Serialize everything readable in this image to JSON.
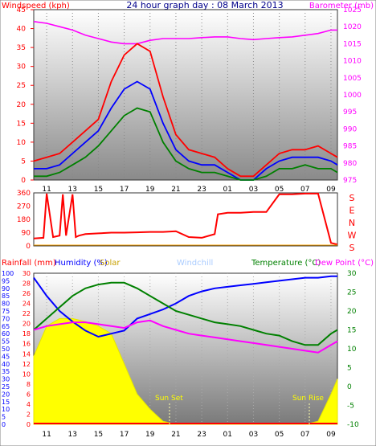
{
  "title": "24 hour graph day : 08 March 2013",
  "x_tick_labels": [
    "11",
    "13",
    "15",
    "17",
    "19",
    "21",
    "23",
    "01",
    "03",
    "05",
    "07",
    "09"
  ],
  "top": {
    "left_label": "Windspeed (kph)",
    "right_label": "Barometer (mb)",
    "left_ticks": [
      0,
      5,
      10,
      15,
      20,
      25,
      30,
      35,
      40,
      45
    ],
    "right_ticks": [
      975,
      980,
      985,
      990,
      995,
      1000,
      1005,
      1010,
      1015,
      1020,
      1025
    ],
    "colors": {
      "gust": "#ff0000",
      "avg": "#0000ff",
      "lull": "#008000",
      "baro": "#ff00ff",
      "left_axis": "#ff0000",
      "right_axis": "#ff00ff"
    }
  },
  "mid": {
    "left_ticks": [
      0,
      90,
      180,
      270,
      360
    ],
    "right_letters": [
      "S",
      "E",
      "N",
      "W",
      "S"
    ],
    "colors": {
      "dir": "#ff0000"
    }
  },
  "bottom": {
    "labels": {
      "rain": "Rainfall (mm)",
      "humidity": "Humidity (%)",
      "solar": "Solar",
      "windchill": "Windchill",
      "temp": "Temperature (°C)",
      "dew": "Dew Point (°C)"
    },
    "rain_ticks": [
      0,
      5,
      10,
      15,
      20,
      25,
      30,
      35,
      40,
      45,
      50,
      55,
      60,
      65,
      70,
      75,
      80,
      85,
      90,
      95,
      100
    ],
    "humidity_ticks": [
      0,
      2,
      4,
      6,
      8,
      10,
      12,
      14,
      16,
      18,
      20,
      22,
      24,
      26,
      28,
      30
    ],
    "temp_ticks": [
      -10,
      -5,
      0,
      5,
      10,
      15,
      20,
      25,
      30
    ],
    "sun_set": "Sun Set",
    "sun_rise": "Sun Rise",
    "colors": {
      "humidity": "#0000ff",
      "temp": "#008000",
      "dew": "#ff00ff",
      "solar": "#ffff00",
      "rain_axis": "#ff0000",
      "humidity_axis": "#0000ff",
      "temp_axis": "#008000",
      "windchill": "#aaccff"
    }
  },
  "chart_data": [
    {
      "type": "line",
      "name_ref": "wind-barometer",
      "x": [
        "10:00",
        "11:00",
        "12:00",
        "13:00",
        "14:00",
        "15:00",
        "16:00",
        "17:00",
        "18:00",
        "19:00",
        "20:00",
        "21:00",
        "22:00",
        "23:00",
        "00:00",
        "01:00",
        "02:00",
        "03:00",
        "04:00",
        "05:00",
        "06:00",
        "07:00",
        "08:00",
        "09:00",
        "09:30"
      ],
      "series": [
        {
          "name": "Barometer",
          "axis": "right",
          "values": [
            1021.5,
            1021,
            1020,
            1019,
            1017.5,
            1016.5,
            1015.5,
            1015,
            1015,
            1016,
            1016.5,
            1016.5,
            1016.5,
            1016.8,
            1017,
            1017,
            1016.5,
            1016.2,
            1016.5,
            1016.8,
            1017,
            1017.5,
            1018,
            1019,
            1019
          ]
        },
        {
          "name": "Gust",
          "axis": "left",
          "values": [
            5,
            6,
            7,
            10,
            13,
            16,
            26,
            33,
            36,
            34,
            22,
            12,
            8,
            7,
            6,
            3,
            1,
            1,
            4,
            7,
            8,
            8,
            9,
            7,
            6
          ]
        },
        {
          "name": "Average",
          "axis": "left",
          "values": [
            3,
            3,
            4,
            7,
            10,
            13,
            19,
            24,
            26,
            24,
            15,
            8,
            5,
            4,
            4,
            2,
            0,
            0,
            3,
            5,
            6,
            6,
            6,
            5,
            4
          ]
        },
        {
          "name": "Lull",
          "axis": "left",
          "values": [
            1,
            1,
            2,
            4,
            6,
            9,
            13,
            17,
            19,
            18,
            10,
            5,
            3,
            2,
            2,
            1,
            0,
            0,
            1,
            3,
            3,
            4,
            3,
            3,
            2
          ]
        }
      ],
      "left_range": [
        0,
        45
      ],
      "right_range": [
        975,
        1025
      ]
    },
    {
      "type": "line",
      "name_ref": "wind-direction",
      "x": [
        "10:00",
        "10:45",
        "11:00",
        "11:30",
        "12:00",
        "12:15",
        "12:30",
        "13:00",
        "13:15",
        "13:30",
        "14:00",
        "15:00",
        "16:00",
        "17:00",
        "18:00",
        "19:00",
        "20:00",
        "21:00",
        "22:00",
        "23:00",
        "00:00",
        "00:15",
        "01:00",
        "02:00",
        "03:00",
        "04:00",
        "05:00",
        "06:00",
        "07:00",
        "08:00",
        "09:00",
        "09:30"
      ],
      "values": [
        50,
        55,
        355,
        60,
        70,
        350,
        70,
        350,
        60,
        70,
        80,
        85,
        90,
        90,
        92,
        95,
        95,
        100,
        60,
        55,
        80,
        215,
        225,
        225,
        230,
        230,
        350,
        350,
        355,
        355,
        20,
        10
      ],
      "range": [
        0,
        360
      ]
    },
    {
      "type": "line",
      "name_ref": "temp-humidity-solar",
      "x": [
        "10:00",
        "11:00",
        "12:00",
        "13:00",
        "14:00",
        "15:00",
        "16:00",
        "17:00",
        "18:00",
        "19:00",
        "20:00",
        "21:00",
        "22:00",
        "23:00",
        "00:00",
        "01:00",
        "02:00",
        "03:00",
        "04:00",
        "05:00",
        "06:00",
        "07:00",
        "08:00",
        "09:00",
        "09:30"
      ],
      "series": [
        {
          "name": "Humidity",
          "axis": "humidity",
          "values": [
            97,
            85,
            75,
            68,
            62,
            58,
            60,
            62,
            70,
            73,
            76,
            80,
            85,
            88,
            90,
            91,
            92,
            93,
            94,
            95,
            96,
            97,
            97,
            98,
            98
          ]
        },
        {
          "name": "Temperature",
          "axis": "temp",
          "values": [
            15,
            18,
            21,
            24,
            26,
            27,
            27.5,
            27.5,
            26,
            24,
            22,
            20,
            19,
            18,
            17,
            16.5,
            16,
            15,
            14,
            13.5,
            12,
            11,
            11,
            14,
            15
          ]
        },
        {
          "name": "Dew Point",
          "axis": "temp",
          "values": [
            15,
            16,
            16.5,
            17,
            17,
            16.5,
            16,
            15.5,
            17,
            17.5,
            16,
            15,
            14,
            13.5,
            13,
            12.5,
            12,
            11.5,
            11,
            10.5,
            10,
            9.5,
            9,
            11,
            12
          ]
        },
        {
          "name": "Solar",
          "axis": "rain",
          "values": [
            45,
            65,
            70,
            70,
            68,
            65,
            60,
            40,
            20,
            10,
            2,
            0,
            0,
            0,
            0,
            0,
            0,
            0,
            0,
            0,
            0,
            0,
            2,
            20,
            30
          ]
        }
      ],
      "rain_range": [
        0,
        100
      ],
      "humidity_range": [
        0,
        30
      ],
      "temp_range": [
        -10,
        30
      ]
    }
  ]
}
